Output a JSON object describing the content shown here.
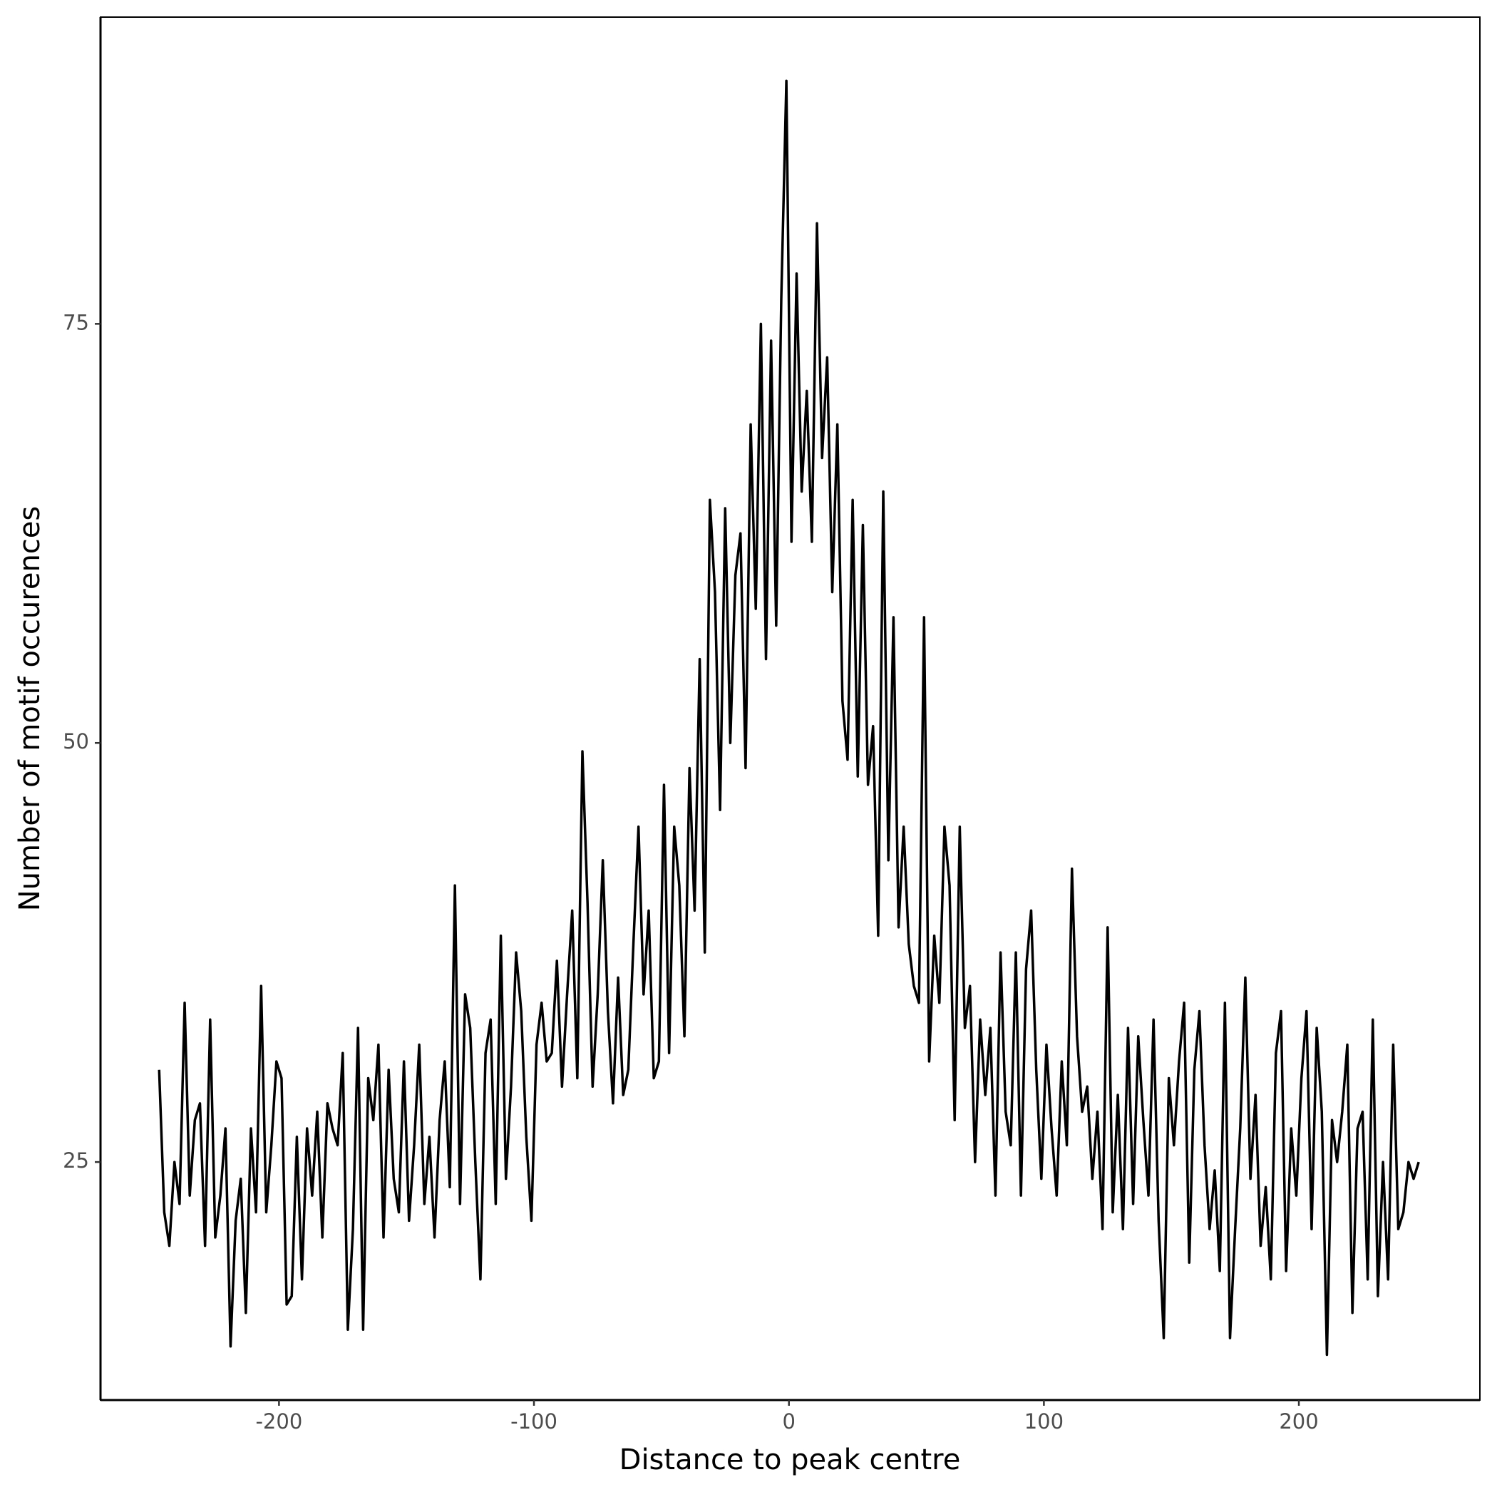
{
  "chart_data": {
    "type": "line",
    "x_label": "Distance to peak centre",
    "y_label": "Number of motif occurences",
    "color": "#000000",
    "grid": false,
    "xlim": [
      -270,
      271
    ],
    "ylim": [
      10.8,
      93.3
    ],
    "xticks": [
      -200,
      -100,
      0,
      100,
      200
    ],
    "yticks": [
      25,
      50,
      75
    ],
    "x": [
      -247,
      -245,
      -243,
      -241,
      -239,
      -237,
      -235,
      -233,
      -231,
      -229,
      -227,
      -225,
      -223,
      -221,
      -219,
      -217,
      -215,
      -213,
      -211,
      -209,
      -207,
      -205,
      -203,
      -201,
      -199,
      -197,
      -195,
      -193,
      -191,
      -189,
      -187,
      -185,
      -183,
      -181,
      -179,
      -177,
      -175,
      -173,
      -171,
      -169,
      -167,
      -165,
      -163,
      -161,
      -159,
      -157,
      -155,
      -153,
      -151,
      -149,
      -147,
      -145,
      -143,
      -141,
      -139,
      -137,
      -135,
      -133,
      -131,
      -129,
      -127,
      -125,
      -123,
      -121,
      -119,
      -117,
      -115,
      -113,
      -111,
      -109,
      -107,
      -105,
      -103,
      -101,
      -99,
      -97,
      -95,
      -93,
      -91,
      -89,
      -87,
      -85,
      -83,
      -81,
      -79,
      -77,
      -75,
      -73,
      -71,
      -69,
      -67,
      -65,
      -63,
      -61,
      -59,
      -57,
      -55,
      -53,
      -51,
      -49,
      -47,
      -45,
      -43,
      -41,
      -39,
      -37,
      -35,
      -33,
      -31,
      -29,
      -27,
      -25,
      -23,
      -21,
      -19,
      -17,
      -15,
      -13,
      -11,
      -9,
      -7,
      -5,
      -3,
      -1,
      1,
      3,
      5,
      7,
      9,
      11,
      13,
      15,
      17,
      19,
      21,
      23,
      25,
      27,
      29,
      31,
      33,
      35,
      37,
      39,
      41,
      43,
      45,
      47,
      49,
      51,
      53,
      55,
      57,
      59,
      61,
      63,
      65,
      67,
      69,
      71,
      73,
      75,
      77,
      79,
      81,
      83,
      85,
      87,
      89,
      91,
      93,
      95,
      97,
      99,
      101,
      103,
      105,
      107,
      109,
      111,
      113,
      115,
      117,
      119,
      121,
      123,
      125,
      127,
      129,
      131,
      133,
      135,
      137,
      139,
      141,
      143,
      145,
      147,
      149,
      151,
      153,
      155,
      157,
      159,
      161,
      163,
      165,
      167,
      169,
      171,
      173,
      175,
      177,
      179,
      181,
      183,
      185,
      187,
      189,
      191,
      193,
      195,
      197,
      199,
      201,
      203,
      205,
      207,
      209,
      211,
      213,
      215,
      217,
      219,
      221,
      223,
      225,
      227,
      229,
      231,
      233,
      235,
      237,
      239,
      241,
      243,
      245,
      247
    ],
    "values": [
      30.5,
      22,
      20,
      25,
      22.5,
      34.5,
      23,
      27.5,
      28.5,
      20,
      33.5,
      20.5,
      23,
      27,
      14,
      21.5,
      24,
      16,
      27,
      22,
      35.5,
      22,
      26,
      31,
      30,
      16.5,
      17,
      26.5,
      18,
      27,
      23,
      28,
      20.5,
      28.5,
      27,
      26,
      31.5,
      15,
      21,
      33,
      15,
      30,
      27.5,
      32,
      20.5,
      30.5,
      24,
      22,
      31,
      21.5,
      26,
      32,
      22.5,
      26.5,
      20.5,
      27.5,
      31,
      23.5,
      41.5,
      22.5,
      35,
      33,
      25,
      18,
      31.5,
      33.5,
      22.5,
      38.5,
      24,
      29.5,
      37.5,
      34,
      26.5,
      21.5,
      32,
      34.5,
      31,
      31.5,
      37,
      29.5,
      35,
      40,
      30,
      49.5,
      40.5,
      29.5,
      35,
      43,
      34,
      28.5,
      36,
      29,
      30.5,
      38,
      45,
      35,
      40,
      30,
      31,
      47.5,
      31.5,
      45,
      41.5,
      32.5,
      48.5,
      40,
      55,
      37.5,
      64.5,
      59,
      46,
      64,
      50,
      60,
      62.5,
      48.5,
      69,
      58,
      75,
      55,
      74,
      57,
      76.5,
      89.5,
      62,
      78,
      65,
      71,
      62,
      81,
      67,
      73,
      59,
      69,
      52.5,
      49,
      64.5,
      48,
      63,
      47.5,
      51,
      38.5,
      65,
      43,
      57.5,
      39,
      45,
      38,
      35.5,
      34.5,
      57.5,
      31,
      38.5,
      34.5,
      45,
      41.5,
      27.5,
      45,
      33,
      35.5,
      25,
      33.5,
      29,
      33,
      23,
      37.5,
      28,
      26,
      37.5,
      23,
      36.5,
      40,
      30.5,
      24,
      32,
      27,
      23,
      31,
      26,
      42.5,
      32.5,
      28,
      29.5,
      24,
      28,
      21,
      39,
      22,
      29,
      21,
      33,
      22.5,
      32.5,
      27.5,
      23,
      33.5,
      21.5,
      14.5,
      30,
      26,
      31,
      34.5,
      19,
      30.5,
      34,
      26,
      21,
      24.5,
      18.5,
      34.5,
      14.5,
      21,
      27,
      36,
      24,
      29,
      20,
      23.5,
      18,
      31.5,
      34,
      18.5,
      27,
      23,
      30,
      34,
      21,
      33,
      28,
      13.5,
      27.5,
      25,
      28,
      32,
      16,
      27,
      28,
      18,
      33.5,
      17,
      25,
      18,
      32,
      21,
      22,
      25,
      24,
      25
    ]
  }
}
